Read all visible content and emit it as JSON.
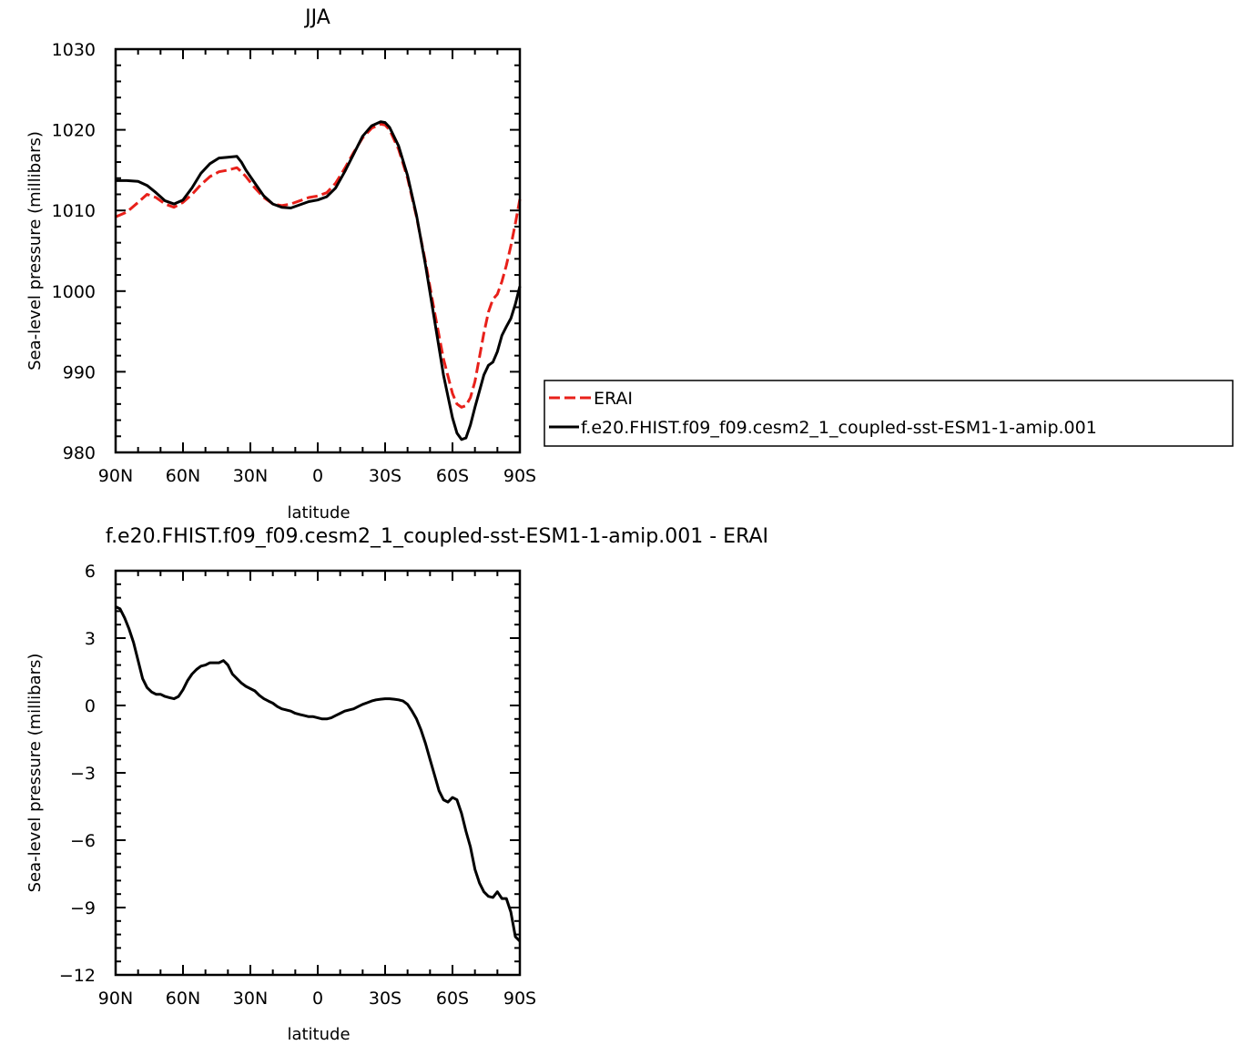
{
  "chart_data": [
    {
      "type": "line",
      "title": "JJA",
      "xlabel": "latitude",
      "ylabel": "Sea-level pressure (millibars)",
      "xlim": [
        90,
        -90
      ],
      "ylim": [
        980,
        1030
      ],
      "xticks": [
        90,
        60,
        30,
        0,
        -30,
        -60,
        -90
      ],
      "xtick_labels": [
        "90N",
        "60N",
        "30N",
        "0",
        "30S",
        "60S",
        "90S"
      ],
      "yticks": [
        980,
        990,
        1000,
        1010,
        1020,
        1030
      ],
      "ytick_labels": [
        "980",
        "990",
        "1000",
        "1010",
        "1020",
        "1030"
      ],
      "grid": false,
      "legend_position": "right",
      "series": [
        {
          "name": "ERAI",
          "color": "#e8201a",
          "dash": "dashed",
          "x": [
            90,
            85,
            80,
            76,
            72,
            68,
            64,
            60,
            56,
            52,
            48,
            44,
            40,
            36,
            34,
            32,
            28,
            24,
            20,
            16,
            12,
            8,
            4,
            0,
            -4,
            -8,
            -12,
            -16,
            -20,
            -24,
            -28,
            -30,
            -32,
            -36,
            -40,
            -44,
            -48,
            -52,
            -56,
            -60,
            -62,
            -64,
            -66,
            -68,
            -70,
            -72,
            -74,
            -76,
            -78,
            -80,
            -82,
            -84,
            -86,
            -88,
            -90
          ],
          "y": [
            1009.2,
            1009.8,
            1011.0,
            1012.0,
            1011.6,
            1010.8,
            1010.4,
            1011.0,
            1012.0,
            1013.2,
            1014.2,
            1014.8,
            1015.0,
            1015.3,
            1014.8,
            1014.2,
            1012.8,
            1011.6,
            1010.8,
            1010.6,
            1010.8,
            1011.2,
            1011.6,
            1011.8,
            1012.2,
            1013.4,
            1015.2,
            1017.2,
            1019.0,
            1020.2,
            1020.7,
            1020.6,
            1020.0,
            1017.6,
            1014.0,
            1009.2,
            1003.6,
            997.4,
            991.6,
            987.3,
            986.0,
            985.6,
            985.8,
            986.8,
            988.8,
            991.8,
            994.8,
            997.4,
            999.0,
            999.6,
            1001.2,
            1003.2,
            1005.6,
            1008.4,
            1011.4
          ]
        },
        {
          "name": "f.e20.FHIST.f09_f09.cesm2_1_coupled-sst-ESM1-1-amip.001",
          "color": "#000000",
          "dash": "solid",
          "x": [
            90,
            85,
            80,
            76,
            72,
            68,
            64,
            60,
            56,
            52,
            48,
            44,
            40,
            36,
            34,
            32,
            28,
            24,
            20,
            16,
            12,
            8,
            4,
            0,
            -4,
            -8,
            -12,
            -16,
            -20,
            -24,
            -28,
            -30,
            -32,
            -36,
            -40,
            -44,
            -48,
            -52,
            -56,
            -60,
            -62,
            -64,
            -66,
            -68,
            -70,
            -72,
            -74,
            -76,
            -78,
            -80,
            -82,
            -84,
            -86,
            -88,
            -90
          ],
          "y": [
            1013.7,
            1013.7,
            1013.6,
            1013.1,
            1012.2,
            1011.2,
            1010.8,
            1011.3,
            1012.8,
            1014.6,
            1015.8,
            1016.5,
            1016.6,
            1016.7,
            1016.0,
            1015.0,
            1013.4,
            1011.8,
            1010.8,
            1010.4,
            1010.3,
            1010.7,
            1011.1,
            1011.3,
            1011.7,
            1012.8,
            1014.8,
            1017.0,
            1019.2,
            1020.5,
            1021.0,
            1020.9,
            1020.3,
            1018.0,
            1014.3,
            1009.4,
            1003.2,
            996.4,
            989.6,
            984.3,
            982.4,
            981.6,
            981.8,
            983.4,
            985.6,
            987.6,
            989.6,
            990.8,
            991.2,
            992.5,
            994.5,
            995.6,
            996.6,
            998.4,
            1000.6
          ]
        }
      ]
    },
    {
      "type": "line",
      "title": "f.e20.FHIST.f09_f09.cesm2_1_coupled-sst-ESM1-1-amip.001 - ERAI",
      "xlabel": "latitude",
      "ylabel": "Sea-level pressure (millibars)",
      "xlim": [
        90,
        -90
      ],
      "ylim": [
        -12,
        6
      ],
      "xticks": [
        90,
        60,
        30,
        0,
        -30,
        -60,
        -90
      ],
      "xtick_labels": [
        "90N",
        "60N",
        "30N",
        "0",
        "30S",
        "60S",
        "90S"
      ],
      "yticks": [
        -12,
        -9,
        -6,
        -3,
        0,
        3,
        6
      ],
      "ytick_labels": [
        "−12",
        "−9",
        "−6",
        "−3",
        "0",
        "3",
        "6"
      ],
      "grid": false,
      "series": [
        {
          "color": "#000000",
          "x": [
            90,
            88,
            86,
            84,
            82,
            80,
            78,
            76,
            74,
            72,
            70,
            68,
            66,
            64,
            62,
            60,
            58,
            56,
            54,
            52,
            50,
            48,
            46,
            44,
            42,
            41,
            40,
            38,
            36,
            34,
            32,
            30,
            28,
            26,
            24,
            22,
            20,
            18,
            16,
            14,
            12,
            10,
            8,
            6,
            4,
            2,
            0,
            -2,
            -4,
            -6,
            -8,
            -10,
            -12,
            -14,
            -16,
            -18,
            -20,
            -22,
            -24,
            -26,
            -28,
            -30,
            -32,
            -34,
            -36,
            -38,
            -40,
            -42,
            -44,
            -46,
            -48,
            -50,
            -52,
            -54,
            -56,
            -58,
            -60,
            -62,
            -64,
            -66,
            -68,
            -70,
            -72,
            -74,
            -76,
            -78,
            -80,
            -82,
            -84,
            -86,
            -88,
            -90
          ],
          "y": [
            4.4,
            4.3,
            3.9,
            3.4,
            2.8,
            2.0,
            1.2,
            0.8,
            0.6,
            0.5,
            0.5,
            0.4,
            0.35,
            0.3,
            0.4,
            0.7,
            1.1,
            1.4,
            1.6,
            1.75,
            1.8,
            1.9,
            1.9,
            1.9,
            2.0,
            1.9,
            1.8,
            1.4,
            1.2,
            1.0,
            0.85,
            0.75,
            0.65,
            0.45,
            0.3,
            0.2,
            0.1,
            -0.05,
            -0.15,
            -0.2,
            -0.25,
            -0.35,
            -0.4,
            -0.45,
            -0.5,
            -0.5,
            -0.55,
            -0.6,
            -0.6,
            -0.55,
            -0.45,
            -0.35,
            -0.25,
            -0.2,
            -0.15,
            -0.05,
            0.05,
            0.12,
            0.2,
            0.25,
            0.28,
            0.3,
            0.3,
            0.28,
            0.25,
            0.2,
            0.05,
            -0.25,
            -0.6,
            -1.1,
            -1.7,
            -2.4,
            -3.1,
            -3.8,
            -4.2,
            -4.3,
            -4.1,
            -4.2,
            -4.8,
            -5.6,
            -6.3,
            -7.3,
            -7.9,
            -8.3,
            -8.5,
            -8.55,
            -8.3,
            -8.6,
            -8.6,
            -9.2,
            -10.3,
            -10.5
          ]
        }
      ]
    }
  ]
}
